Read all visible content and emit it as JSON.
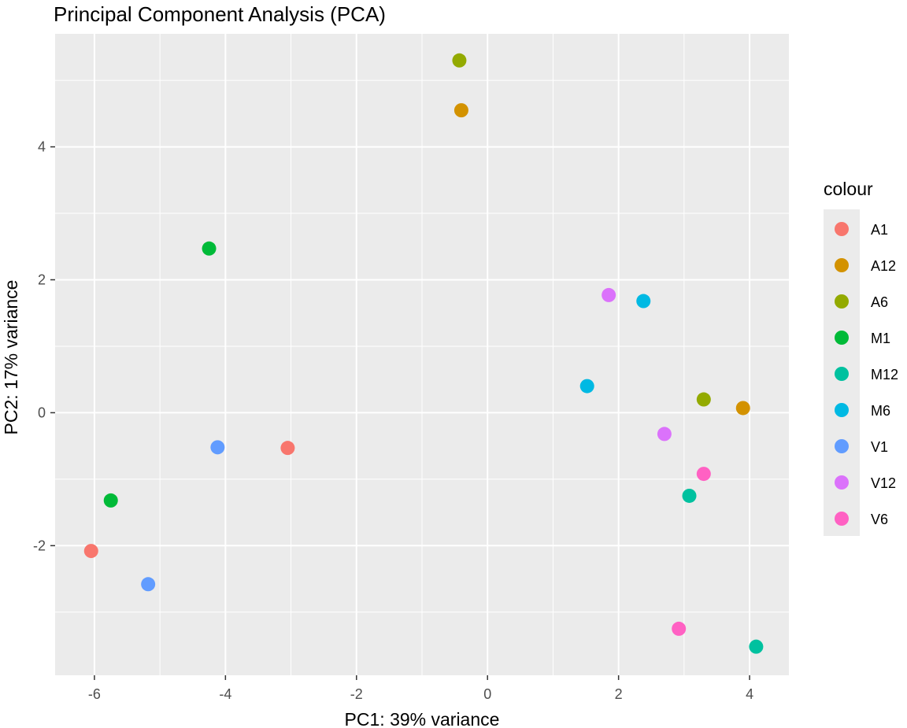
{
  "chart_data": {
    "type": "scatter",
    "title": "Principal Component Analysis (PCA)",
    "xlabel": "PC1: 39% variance",
    "ylabel": "PC2: 17% variance",
    "xlim": [
      -6.6,
      4.6
    ],
    "ylim": [
      -3.95,
      5.7
    ],
    "x_ticks": [
      -6,
      -4,
      -2,
      0,
      2,
      4
    ],
    "y_ticks": [
      -2,
      0,
      2,
      4
    ],
    "x_tick_labels": [
      "-6",
      "-4",
      "-2",
      "0",
      "2",
      "4"
    ],
    "y_tick_labels": [
      "-2",
      "0",
      "2",
      "4"
    ],
    "grid": true,
    "legend": {
      "title": "colour",
      "position": "right"
    },
    "series": [
      {
        "name": "A1",
        "color": "#F8766D",
        "points": [
          [
            -3.05,
            -0.53
          ],
          [
            -6.05,
            -2.08
          ]
        ]
      },
      {
        "name": "A12",
        "color": "#D39200",
        "points": [
          [
            -0.4,
            4.55
          ],
          [
            3.9,
            0.07
          ]
        ]
      },
      {
        "name": "A6",
        "color": "#93AA00",
        "points": [
          [
            -0.43,
            5.3
          ],
          [
            3.3,
            0.2
          ]
        ]
      },
      {
        "name": "M1",
        "color": "#00BA38",
        "points": [
          [
            -4.25,
            2.47
          ],
          [
            -5.75,
            -1.32
          ]
        ]
      },
      {
        "name": "M12",
        "color": "#00C19F",
        "points": [
          [
            3.08,
            -1.25
          ],
          [
            4.1,
            -3.52
          ]
        ]
      },
      {
        "name": "M6",
        "color": "#00B9E3",
        "points": [
          [
            2.38,
            1.68
          ],
          [
            1.52,
            0.4
          ]
        ]
      },
      {
        "name": "V1",
        "color": "#619CFF",
        "points": [
          [
            -4.12,
            -0.52
          ],
          [
            -5.18,
            -2.58
          ]
        ]
      },
      {
        "name": "V12",
        "color": "#DB72FB",
        "points": [
          [
            1.85,
            1.77
          ],
          [
            2.7,
            -0.32
          ]
        ]
      },
      {
        "name": "V6",
        "color": "#FF61C3",
        "points": [
          [
            3.3,
            -0.92
          ],
          [
            2.92,
            -3.25
          ]
        ]
      }
    ]
  }
}
